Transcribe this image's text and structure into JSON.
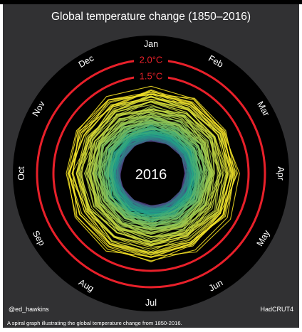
{
  "chart_data": {
    "type": "line",
    "title": "Global temperature change (1850–2016)",
    "center_label": "2016",
    "months": [
      "Jan",
      "Feb",
      "Mar",
      "Apr",
      "May",
      "Jun",
      "Jul",
      "Aug",
      "Sep",
      "Oct",
      "Nov",
      "Dec"
    ],
    "year_range": [
      1850,
      2016
    ],
    "rings": [
      {
        "label": "2.0°C",
        "value": 2.0,
        "color": "#e8202a"
      },
      {
        "label": "1.5°C",
        "value": 1.5,
        "color": "#e8202a"
      }
    ],
    "radial_range": [
      -1.0,
      2.0
    ],
    "colors": {
      "background": "#313133",
      "disc": "#000000",
      "early": "#5a2d82",
      "mid": "#1fa187",
      "late": "#fde725",
      "ring": "#e8202a"
    }
  },
  "footer": {
    "left": "@ed_hawkins",
    "right": "HadCRUT4",
    "caption": "A spiral graph illustrating the global temperature change from 1850-2016."
  }
}
